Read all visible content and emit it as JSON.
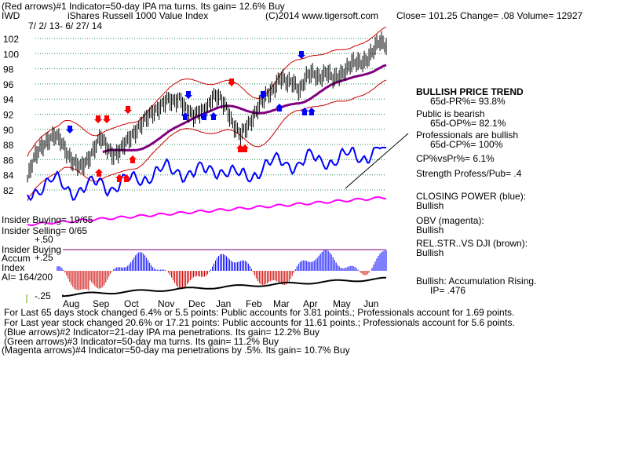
{
  "header": {
    "line1": "(Red arrows)#1 Indicator=50-day IPA ma turns. Its gain= 12.6% Buy",
    "ticker": "IWD",
    "name": "iShares Russell 1000 Value Index",
    "copyright": "(C)2014 www.tigersoft.com",
    "quote": "Close=  101.25  Change= .08 Volume= 12927",
    "daterange": "7/ 2/ 13-  6/ 27/ 14"
  },
  "right_panel": {
    "trend_title": "BULLISH PRICE TREND",
    "pr": "65d-PR%= 93.8%",
    "public_label": "Public is bearish",
    "op": "65d-OP%= 82.1%",
    "pros_label": "Professionals are bullish",
    "cp": "65d-CP%= 100%",
    "cpvspr": "CP%vsPr%=  6.1%",
    "strength": "Strength Profess/Pub= .4",
    "closing_power": "CLOSING POWER (blue):",
    "closing_power_status": "Bullish",
    "obv": "OBV (magenta):",
    "obv_status": "Bullish",
    "relstr": "REL.STR..VS DJI (brown):",
    "relstr_status": "Bullish",
    "accum": "Bullish: Accumulation Rising.",
    "ip": "IP=  .476"
  },
  "left_labels": {
    "insider_buying": "Insider Buying= 19/65",
    "insider_selling": "Insider Selling= 0/65",
    "plus50": "+.50",
    "insider_buying2": "Insider Buying",
    "accum": "Accum",
    "plus25": "+.25",
    "index": "Index",
    "ai": "AI= 164/200",
    "minus25": "-.25"
  },
  "footer": [
    "For Last 65 days stock changed  6.4% or  5.5 points:  Public accounts for  3.81 points.;  Professionals account for  1.69 points.",
    "For Last year stock changed  20.6% or  17.21 points:  Public accounts for  11.61 points.;  Professionals account for  5.6 points.",
    "(Blue arrows)#2 Indicator=21-day IPA ma penetrations. Its gain= 12.2% Buy",
    "(Green arrows)#3 Indicator=50-day ma turns. Its gain= 11.2% Buy",
    "(Magenta arrows)#4 Indicator=50-day ma penetrations by .5%. Its gain= 10.7% Buy"
  ],
  "chart_data": {
    "type": "line",
    "title": "iShares Russell 1000 Value Index",
    "x_tick_labels": [
      "Aug",
      "Sep",
      "Oct",
      "Nov",
      "Dec",
      "Jan",
      "Feb",
      "Mar",
      "Apr",
      "May",
      "Jun"
    ],
    "y_tick_labels": [
      "82",
      "84",
      "86",
      "88",
      "90",
      "92",
      "94",
      "96",
      "98",
      "100",
      "102"
    ],
    "ylim": [
      81,
      103
    ],
    "grid": true,
    "series": [
      {
        "name": "price",
        "color": "#000000",
        "points": [
          [
            "Jul",
            83.5
          ],
          [
            "",
            86.0
          ],
          [
            "",
            87.8
          ],
          [
            "",
            88.6
          ],
          [
            "",
            89.0
          ],
          [
            "Aug",
            88.5
          ],
          [
            "",
            87.0
          ],
          [
            "",
            85.5
          ],
          [
            "",
            84.8
          ],
          [
            "",
            86.0
          ],
          [
            "Sep",
            87.5
          ],
          [
            "",
            88.8
          ],
          [
            "",
            87.5
          ],
          [
            "",
            86.8
          ],
          [
            "",
            87.2
          ],
          [
            "Oct",
            88.3
          ],
          [
            "",
            89.6
          ],
          [
            "",
            90.7
          ],
          [
            "",
            91.4
          ],
          [
            "",
            92.3
          ],
          [
            "Nov",
            93.2
          ],
          [
            "",
            93.8
          ],
          [
            "",
            93.4
          ],
          [
            "",
            94.3
          ],
          [
            "",
            92.5
          ],
          [
            "Dec",
            91.5
          ],
          [
            "",
            92.4
          ],
          [
            "",
            93.0
          ],
          [
            "",
            94.2
          ],
          [
            "",
            94.0
          ],
          [
            "Jan",
            93.0
          ],
          [
            "",
            90.5
          ],
          [
            "",
            89.0
          ],
          [
            "",
            90.4
          ],
          [
            "",
            91.8
          ],
          [
            "Feb",
            93.2
          ],
          [
            "",
            94.5
          ],
          [
            "",
            95.5
          ],
          [
            "",
            96.8
          ],
          [
            "",
            96.0
          ],
          [
            "Mar",
            96.4
          ],
          [
            "",
            95.2
          ],
          [
            "",
            96.8
          ],
          [
            "",
            97.4
          ],
          [
            "",
            97.0
          ],
          [
            "Apr",
            97.5
          ],
          [
            "",
            96.5
          ],
          [
            "",
            97.3
          ],
          [
            "",
            98.0
          ],
          [
            "",
            98.6
          ],
          [
            "May",
            98.8
          ],
          [
            "",
            99.3
          ],
          [
            "",
            100.2
          ],
          [
            "",
            101.5
          ],
          [
            "Jun",
            101.25
          ]
        ]
      },
      {
        "name": "Closing Power",
        "color": "#0000ff"
      },
      {
        "name": "OBV",
        "color": "#ff00ff"
      },
      {
        "name": "REL.STR. vs DJI",
        "color": "#8b4513"
      }
    ]
  },
  "colors": {
    "grid": "#2e8b57",
    "price": "#000000",
    "ma50": "#800080",
    "band": "#cc0000",
    "closing_power": "#0000ff",
    "obv": "#ff00ff",
    "accum_positive": "#0000ff",
    "accum_negative": "#cc0000",
    "arrow_red": "#ff0000",
    "arrow_blue": "#0000ff"
  }
}
